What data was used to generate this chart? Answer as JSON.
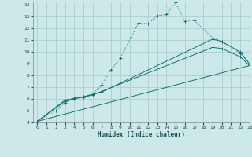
{
  "title": "",
  "xlabel": "Humidex (Indice chaleur)",
  "bg_color": "#cce8e8",
  "grid_color": "#aacece",
  "line_color": "#1a7070",
  "xlim": [
    -0.5,
    23
  ],
  "ylim": [
    4,
    14.3
  ],
  "xticks": [
    0,
    1,
    2,
    3,
    4,
    5,
    6,
    7,
    8,
    9,
    10,
    11,
    12,
    13,
    14,
    15,
    16,
    17,
    18,
    19,
    20,
    21,
    22,
    23
  ],
  "yticks": [
    4,
    5,
    6,
    7,
    8,
    9,
    10,
    11,
    12,
    13,
    14
  ],
  "line1_x": [
    0,
    2,
    3,
    4,
    5,
    6,
    7,
    8,
    9,
    11,
    12,
    13,
    14,
    15,
    16,
    17,
    19,
    20,
    22,
    23
  ],
  "line1_y": [
    4.1,
    5.0,
    5.7,
    6.1,
    6.2,
    6.4,
    7.2,
    8.5,
    9.5,
    12.5,
    12.4,
    13.1,
    13.2,
    14.2,
    12.6,
    12.7,
    11.2,
    10.9,
    9.9,
    9.0
  ],
  "line2_x": [
    0,
    3,
    4,
    5,
    6,
    7,
    19,
    20,
    22,
    23
  ],
  "line2_y": [
    4.1,
    5.8,
    6.0,
    6.2,
    6.4,
    6.6,
    11.1,
    10.9,
    10.0,
    9.0
  ],
  "line3_x": [
    0,
    3,
    4,
    5,
    6,
    19,
    20,
    22,
    23
  ],
  "line3_y": [
    4.1,
    5.9,
    6.05,
    6.15,
    6.35,
    10.4,
    10.3,
    9.6,
    8.85
  ],
  "line4_x": [
    0,
    23
  ],
  "line4_y": [
    4.1,
    8.85
  ]
}
